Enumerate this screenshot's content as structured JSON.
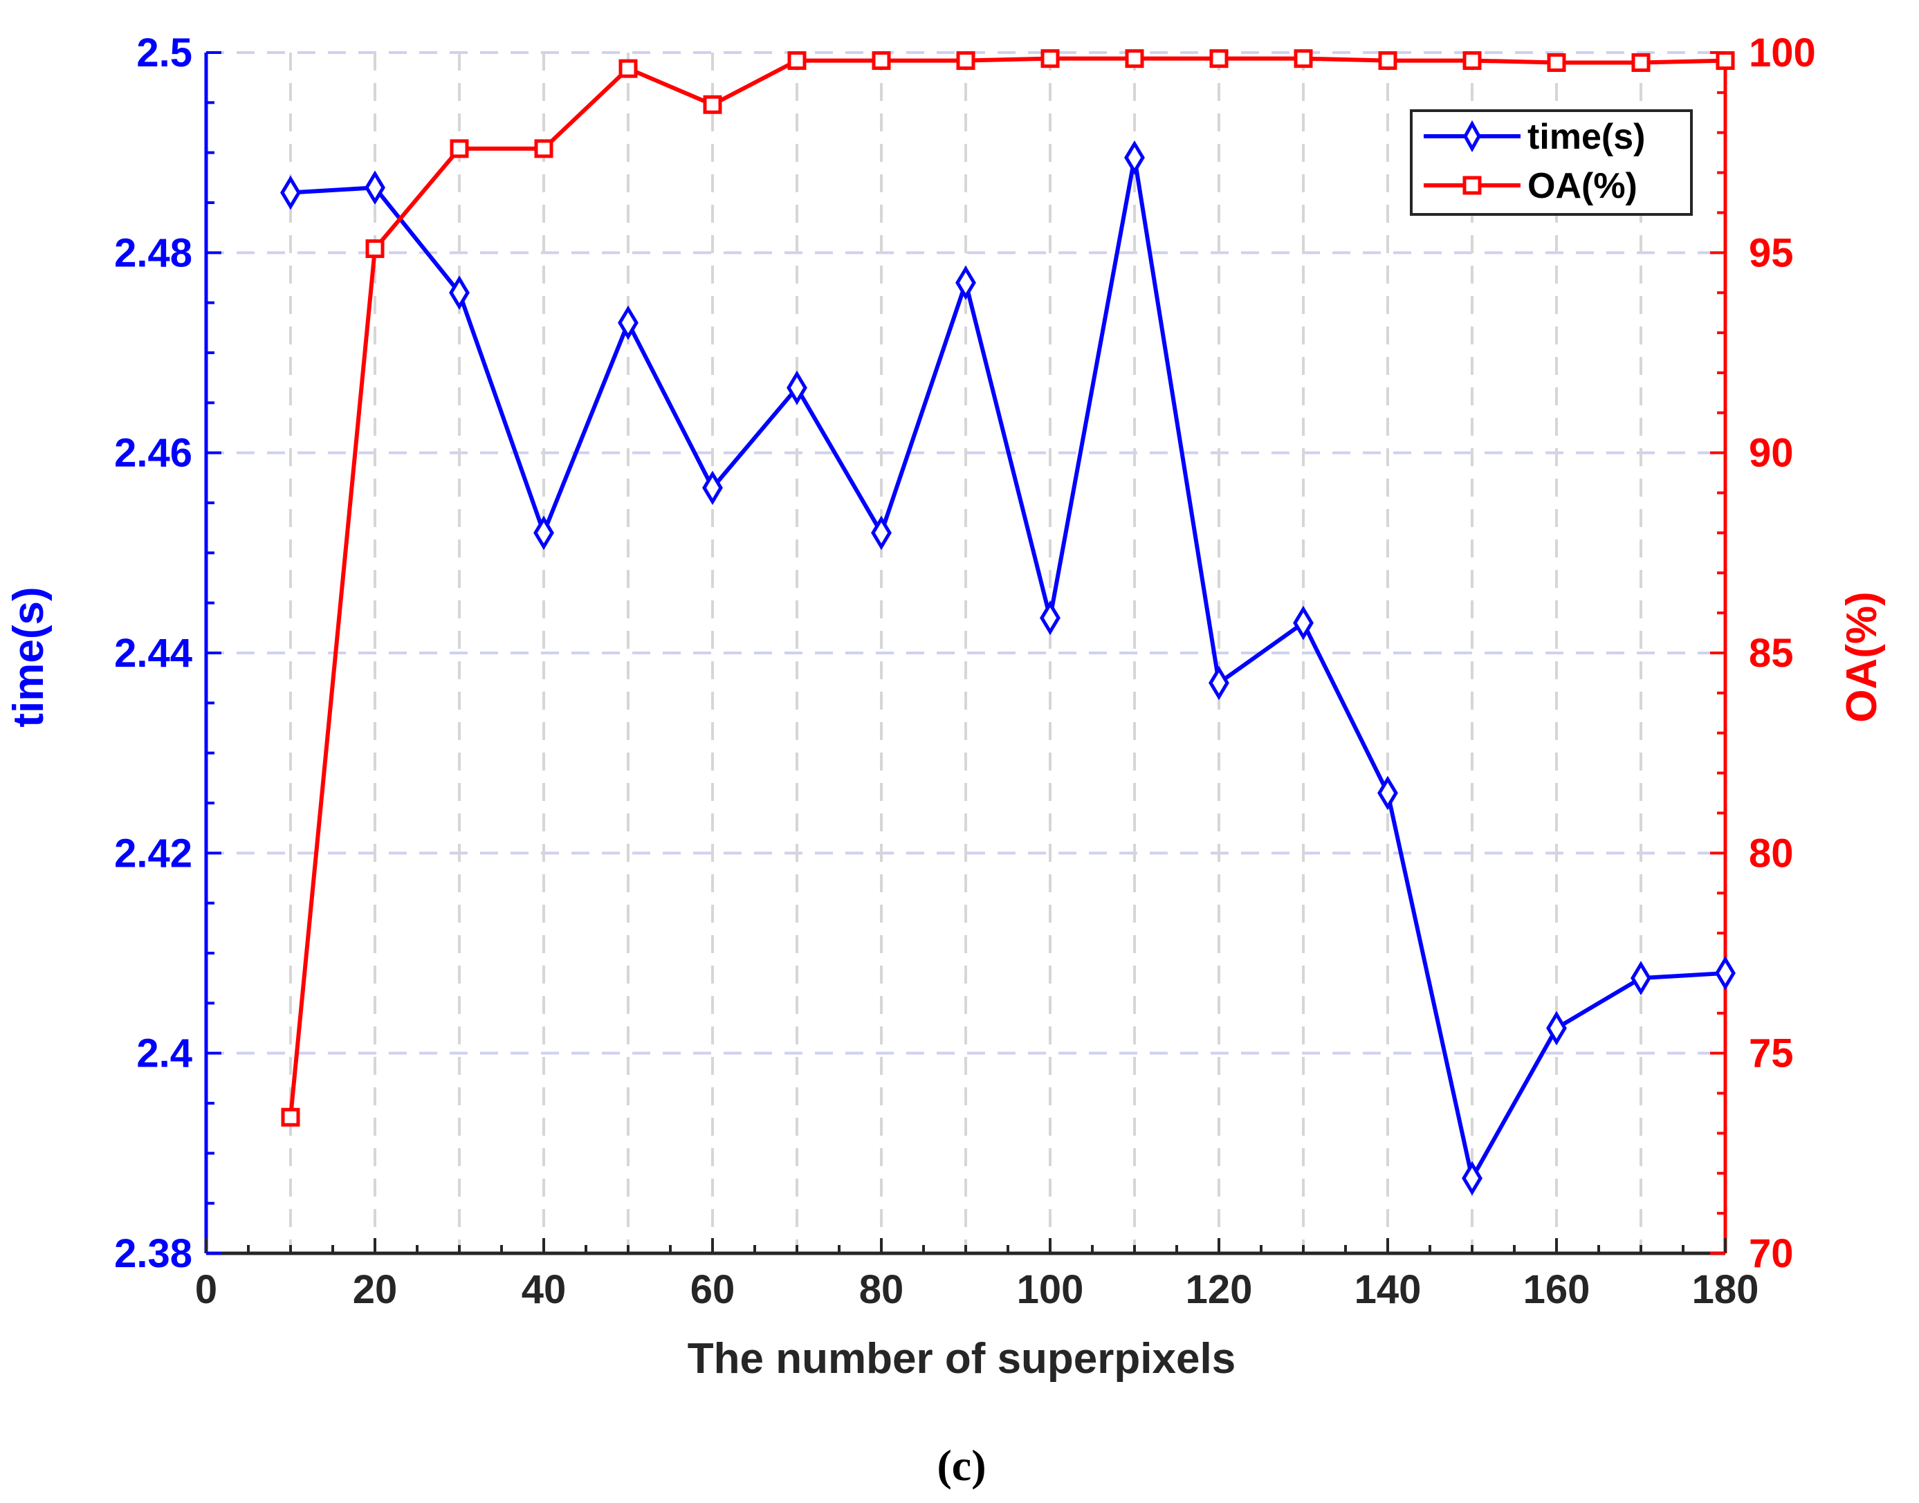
{
  "chart_data": {
    "type": "line",
    "title": "",
    "xlabel": "The number of superpixels",
    "ylabel_left": "time(s)",
    "ylabel_right": "OA(%)",
    "xlim": [
      0,
      180
    ],
    "ylim_left": [
      2.38,
      2.5
    ],
    "ylim_right": [
      70,
      100
    ],
    "x_ticks": [
      "0",
      "20",
      "40",
      "60",
      "80",
      "100",
      "120",
      "140",
      "160",
      "180"
    ],
    "y_left_ticks": [
      "2.38",
      "2.4",
      "2.42",
      "2.44",
      "2.46",
      "2.48",
      "2.5"
    ],
    "y_right_ticks": [
      "70",
      "75",
      "80",
      "85",
      "90",
      "95",
      "100"
    ],
    "grid": true,
    "legend_position": "top-right",
    "x": [
      10,
      20,
      30,
      40,
      50,
      60,
      70,
      80,
      90,
      100,
      110,
      120,
      130,
      140,
      150,
      160,
      170,
      180
    ],
    "series": [
      {
        "name": "time(s)",
        "axis": "left",
        "marker": "diamond",
        "color": "#0000ff",
        "values": [
          2.486,
          2.4865,
          2.476,
          2.452,
          2.473,
          2.4565,
          2.4665,
          2.452,
          2.477,
          2.4435,
          2.4895,
          2.437,
          2.443,
          2.426,
          2.3875,
          2.4025,
          2.4075,
          2.408
        ]
      },
      {
        "name": "OA(%)",
        "axis": "right",
        "marker": "square",
        "color": "#ff0000",
        "values": [
          73.4,
          95.1,
          97.6,
          97.6,
          99.6,
          98.7,
          99.8,
          99.8,
          99.8,
          99.85,
          99.85,
          99.85,
          99.85,
          99.8,
          99.8,
          99.75,
          99.75,
          99.8
        ]
      }
    ]
  },
  "caption": "(c)",
  "colors": {
    "left_axis": "#0000ff",
    "right_axis": "#ff0000",
    "bottom_axis": "#262626",
    "grid": "#d0d0f0"
  }
}
